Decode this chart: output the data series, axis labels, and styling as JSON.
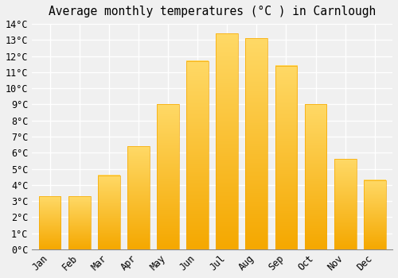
{
  "months": [
    "Jan",
    "Feb",
    "Mar",
    "Apr",
    "May",
    "Jun",
    "Jul",
    "Aug",
    "Sep",
    "Oct",
    "Nov",
    "Dec"
  ],
  "values": [
    3.3,
    3.3,
    4.6,
    6.4,
    9.0,
    11.7,
    13.4,
    13.1,
    11.4,
    9.0,
    5.6,
    4.3
  ],
  "bar_color_bottom": "#F5A800",
  "bar_color_top": "#FFD966",
  "title": "Average monthly temperatures (°C ) in Carnlough",
  "ylim": [
    0,
    14
  ],
  "yticks": [
    0,
    1,
    2,
    3,
    4,
    5,
    6,
    7,
    8,
    9,
    10,
    11,
    12,
    13,
    14
  ],
  "ylabel_suffix": "°C",
  "background_color": "#f0f0f0",
  "grid_color": "#ffffff",
  "title_fontsize": 10.5,
  "tick_fontsize": 8.5,
  "font_family": "monospace",
  "bar_width": 0.75
}
